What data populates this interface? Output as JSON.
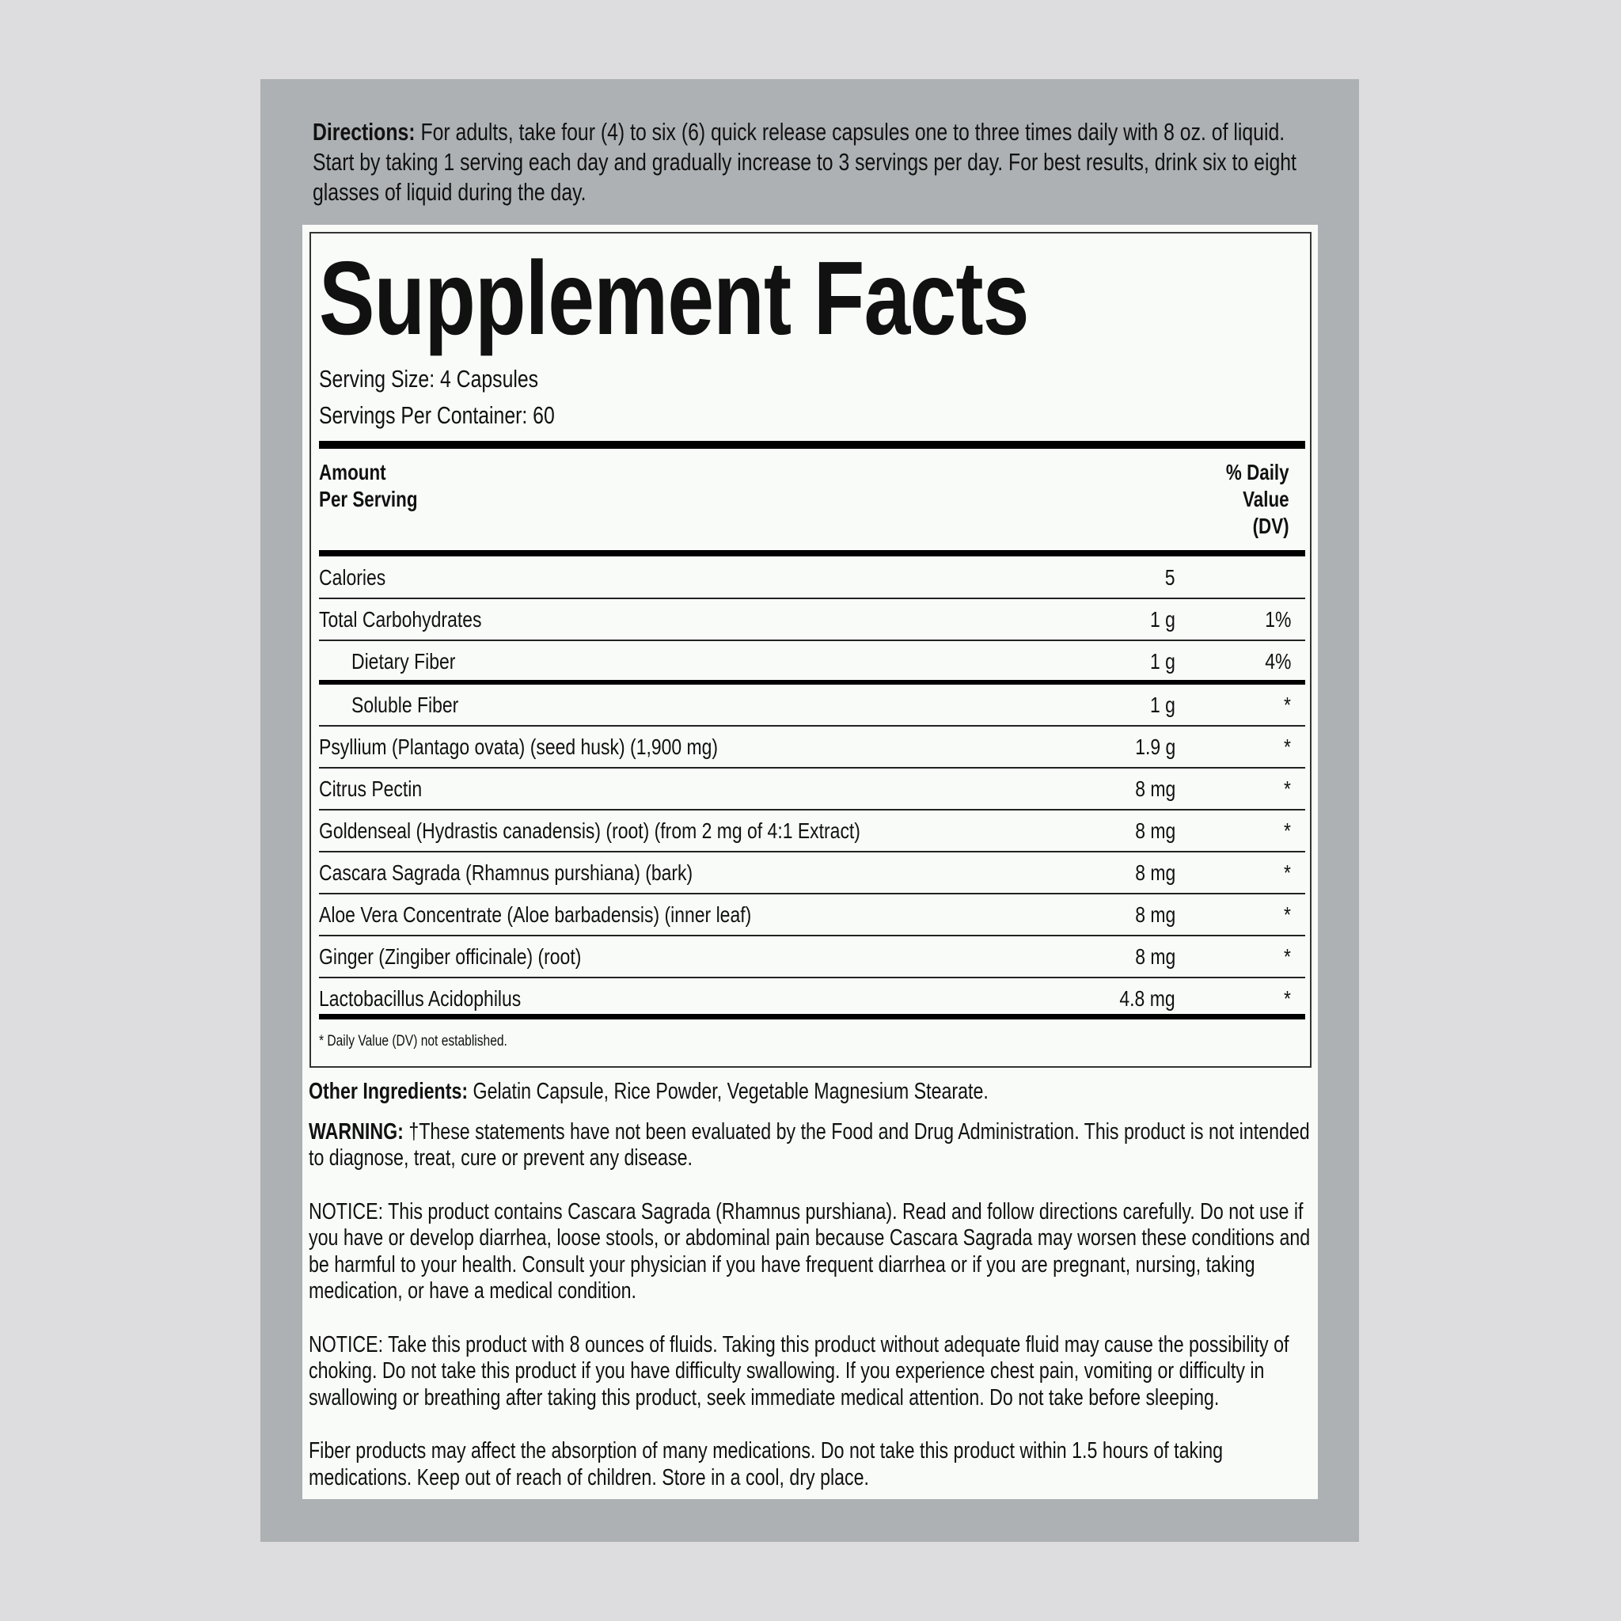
{
  "colors": {
    "background": "#dddcde",
    "panel": "#adb1b4",
    "label": "#f9fbf9",
    "text": "#111111"
  },
  "directions": {
    "label": "Directions:",
    "text": "For adults, take four (4) to six (6) quick release capsules one to three times daily with 8 oz. of liquid. Start by taking 1 serving each day and gradually increase to 3 servings per day. For best results, drink six to eight glasses of liquid during the day."
  },
  "facts": {
    "title": "Supplement Facts",
    "serving_size": "Serving Size: 4 Capsules",
    "servings_per_container": "Servings Per Container: 60",
    "header": {
      "amount_1": "Amount",
      "amount_2": "Per Serving",
      "dv_1": "% Daily",
      "dv_2": "Value",
      "dv_3": "(DV)"
    },
    "rows": [
      {
        "name": "Calories",
        "amount": "5",
        "dv": ""
      },
      {
        "name": "Total Carbohydrates",
        "amount": "1 g",
        "dv": "1%"
      },
      {
        "name": "Dietary Fiber",
        "amount": "1 g",
        "dv": "4%"
      },
      {
        "name": "Soluble Fiber",
        "amount": "1 g",
        "dv": "*"
      },
      {
        "name": "Psyllium (Plantago ovata) (seed husk) (1,900 mg)",
        "amount": "1.9 g",
        "dv": "*"
      },
      {
        "name": "Citrus Pectin",
        "amount": "8 mg",
        "dv": "*"
      },
      {
        "name": "Goldenseal (Hydrastis canadensis) (root) (from 2 mg of 4:1 Extract)",
        "amount": "8 mg",
        "dv": "*"
      },
      {
        "name": "Cascara Sagrada (Rhamnus purshiana) (bark)",
        "amount": "8 mg",
        "dv": "*"
      },
      {
        "name": "Aloe Vera Concentrate (Aloe barbadensis) (inner leaf)",
        "amount": "8 mg",
        "dv": "*"
      },
      {
        "name": "Ginger (Zingiber officinale) (root)",
        "amount": "8 mg",
        "dv": "*"
      },
      {
        "name": "Lactobacillus Acidophilus",
        "amount": "4.8 mg",
        "dv": "*"
      }
    ],
    "footnote": "* Daily Value (DV) not established."
  },
  "other_ingredients": {
    "label": "Other Ingredients:",
    "text": "Gelatin Capsule, Rice Powder, Vegetable Magnesium Stearate."
  },
  "warning": {
    "label": "WARNING:",
    "text": "†These statements have not been evaluated by the Food and Drug Administration. This product is not intended to diagnose, treat, cure or prevent any disease."
  },
  "notice_1": "NOTICE: This product contains Cascara Sagrada (Rhamnus purshiana). Read and follow directions carefully. Do not use if you have or develop diarrhea, loose stools, or abdominal pain because Cascara Sagrada may worsen these conditions and be harmful to your health. Consult your physician if you have frequent diarrhea or if you are pregnant, nursing, taking medication, or have a medical condition.",
  "notice_2": "NOTICE: Take this product with 8 ounces of fluids. Taking this product without adequate fluid may cause the possibility of choking. Do not take this product if you have difficulty swallowing. If you experience chest pain, vomiting or difficulty in swallowing or breathing after taking this product, seek immediate medical attention. Do not take before sleeping.",
  "fiber_note": "Fiber products may affect the absorption of many medications. Do not take this product within 1.5 hours of taking medications. Keep out of reach of children. Store in a cool, dry place."
}
